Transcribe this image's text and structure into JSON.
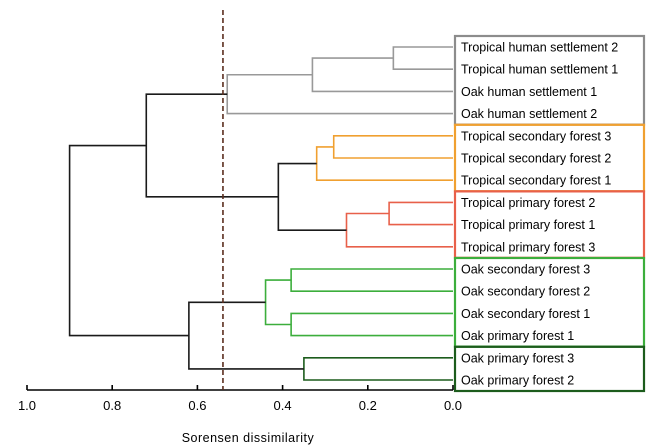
{
  "chart_data": {
    "type": "dendrogram",
    "xlabel": "Sorensen dissimilarity",
    "xlim": [
      1.0,
      0.0
    ],
    "x_ticks": [
      "1.0",
      "0.8",
      "0.6",
      "0.4",
      "0.2",
      "0.0"
    ],
    "x_tick_values": [
      1.0,
      0.8,
      0.6,
      0.4,
      0.2,
      0.0
    ],
    "cutoff": 0.54,
    "leaves": [
      "Tropical human settlement 2",
      "Tropical human settlement 1",
      "Oak human settlement 1",
      "Oak human settlement 2",
      "Tropical secondary forest 3",
      "Tropical secondary forest 2",
      "Tropical secondary forest 1",
      "Tropical primary forest 2",
      "Tropical primary forest 1",
      "Tropical primary forest 3",
      "Oak secondary forest 3",
      "Oak secondary forest 2",
      "Oak secondary forest 1",
      "Oak primary forest 1",
      "Oak primary forest 3",
      "Oak primary forest 2"
    ],
    "merges": [
      {
        "id": "m1",
        "a": "L0",
        "b": "L1",
        "height": 0.14,
        "color": "#999999"
      },
      {
        "id": "m2",
        "a": "m1",
        "b": "L2",
        "height": 0.33,
        "color": "#999999"
      },
      {
        "id": "m3",
        "a": "m2",
        "b": "L3",
        "height": 0.53,
        "color": "#999999"
      },
      {
        "id": "m4",
        "a": "L4",
        "b": "L5",
        "height": 0.28,
        "color": "#f0a030"
      },
      {
        "id": "m5",
        "a": "m4",
        "b": "L6",
        "height": 0.32,
        "color": "#f0a030"
      },
      {
        "id": "m6",
        "a": "L7",
        "b": "L8",
        "height": 0.15,
        "color": "#e8604a"
      },
      {
        "id": "m7",
        "a": "m6",
        "b": "L9",
        "height": 0.25,
        "color": "#e8604a"
      },
      {
        "id": "m8",
        "a": "m5",
        "b": "m7",
        "height": 0.41,
        "color": "#1a1a1a"
      },
      {
        "id": "m9",
        "a": "m3",
        "b": "m8",
        "height": 0.72,
        "color": "#1a1a1a"
      },
      {
        "id": "m10",
        "a": "L10",
        "b": "L11",
        "height": 0.38,
        "color": "#3cae3c"
      },
      {
        "id": "m11",
        "a": "L12",
        "b": "L13",
        "height": 0.38,
        "color": "#3cae3c"
      },
      {
        "id": "m12",
        "a": "m10",
        "b": "m11",
        "height": 0.44,
        "color": "#3cae3c"
      },
      {
        "id": "m13",
        "a": "L14",
        "b": "L15",
        "height": 0.35,
        "color": "#1c5c1c"
      },
      {
        "id": "m14",
        "a": "m12",
        "b": "m13",
        "height": 0.62,
        "color": "#1a1a1a"
      },
      {
        "id": "m15",
        "a": "m9",
        "b": "m14",
        "height": 0.9,
        "color": "#1a1a1a"
      }
    ],
    "groups": [
      {
        "start": 0,
        "end": 3,
        "color": "#8c8c8c"
      },
      {
        "start": 4,
        "end": 6,
        "color": "#f0a030"
      },
      {
        "start": 7,
        "end": 9,
        "color": "#e8604a"
      },
      {
        "start": 10,
        "end": 13,
        "color": "#3cae3c"
      },
      {
        "start": 14,
        "end": 15,
        "color": "#1c5c1c"
      }
    ],
    "colors": {
      "axis": "#000000",
      "cutoff_line": "#5a2e1e"
    }
  }
}
